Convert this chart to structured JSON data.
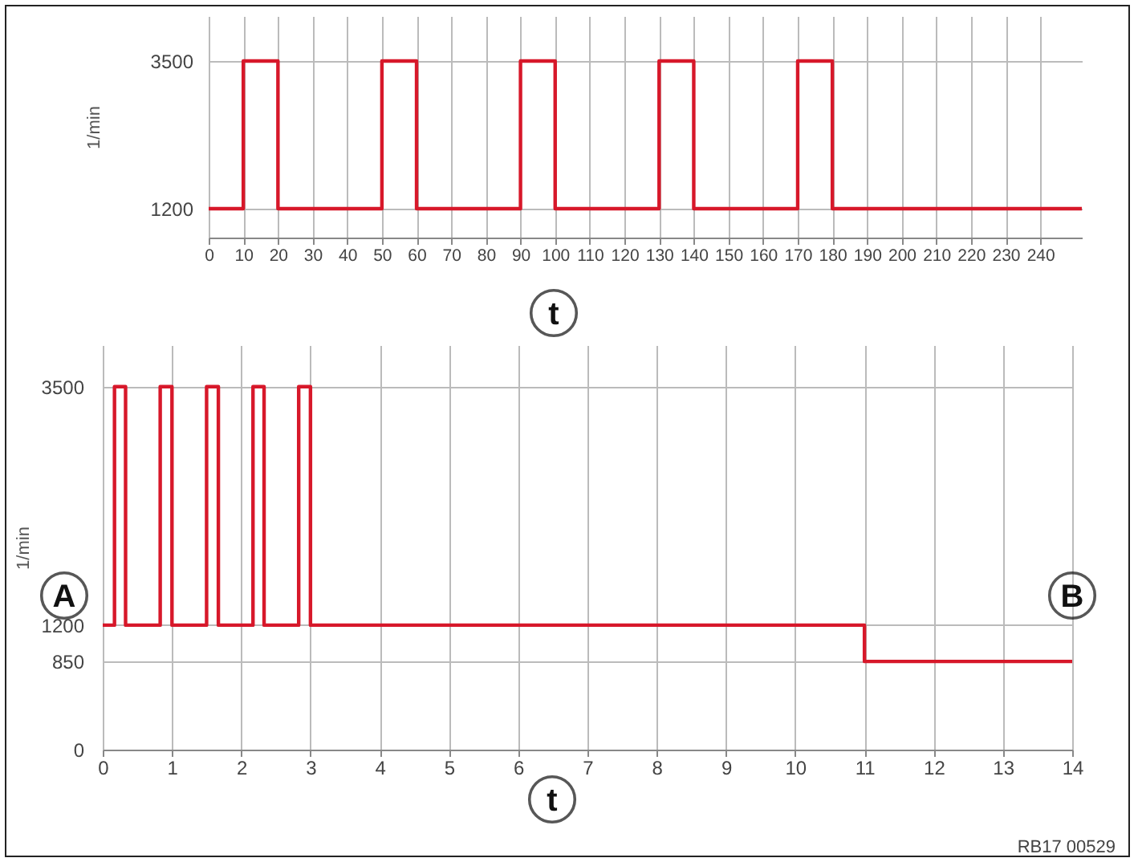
{
  "chart_data": [
    {
      "type": "step",
      "xlabel": "t",
      "ylabel": "1/min",
      "x": [
        0,
        10,
        20,
        50,
        60,
        90,
        100,
        130,
        140,
        170,
        180,
        252
      ],
      "series": [
        {
          "color": "#d7182a",
          "values": [
            1200,
            3500,
            1200,
            3500,
            1200,
            3500,
            1200,
            3500,
            1200,
            3500,
            1200,
            1200
          ]
        }
      ],
      "xlim": [
        0,
        252
      ],
      "xticks": [
        0,
        10,
        20,
        30,
        40,
        50,
        60,
        70,
        80,
        90,
        100,
        110,
        120,
        130,
        140,
        150,
        160,
        170,
        180,
        190,
        200,
        210,
        220,
        230,
        240
      ],
      "ylim": [
        750,
        4200
      ],
      "yticks": [
        1200,
        3500
      ],
      "grid": true
    },
    {
      "type": "step",
      "xlabel": "t",
      "ylabel": "1/min",
      "x": [
        0,
        0.17,
        0.33,
        0.83,
        1,
        1.5,
        1.67,
        2.17,
        2.33,
        2.83,
        3,
        11,
        14
      ],
      "series": [
        {
          "color": "#d7182a",
          "values": [
            1200,
            3500,
            1200,
            3500,
            1200,
            3500,
            1200,
            3500,
            1200,
            3500,
            1200,
            850,
            850
          ]
        }
      ],
      "xlim": [
        0,
        14
      ],
      "xticks": [
        0,
        1,
        2,
        3,
        4,
        5,
        6,
        7,
        8,
        9,
        10,
        11,
        12,
        13,
        14
      ],
      "ylim": [
        0,
        3900
      ],
      "yticks": [
        0,
        850,
        1200,
        3500
      ],
      "grid": true,
      "annotations": [
        "A",
        "B",
        "RB17 00529"
      ]
    }
  ]
}
